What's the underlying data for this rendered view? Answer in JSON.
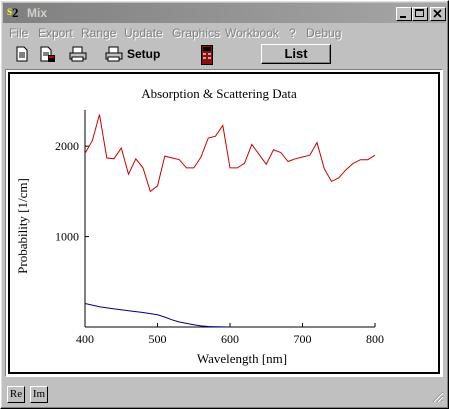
{
  "window": {
    "title": "Mix",
    "icon_text": "2",
    "controls": [
      "minimize",
      "maximize",
      "close"
    ]
  },
  "menu": {
    "items": [
      "File",
      "Export",
      "Range",
      "Update",
      "Graphics",
      "Workbook",
      "?",
      "Debug"
    ]
  },
  "toolbar": {
    "icons": [
      "new-document-icon",
      "save-document-icon",
      "print-icon",
      "printer-setup-icon",
      "calculator-icon"
    ],
    "setup_label": "Setup",
    "list_label": "List"
  },
  "status": {
    "re_label": "Re",
    "im_label": "Im"
  },
  "colors": {
    "absorption_line": "#cc0000",
    "scattering_line": "#000080",
    "window_face": "#c0c0c0",
    "titlebar_inactive": "#808080"
  },
  "chart_data": {
    "type": "line",
    "title": "Absorption & Scattering Data",
    "xlabel": "Wavelength [nm]",
    "ylabel": "Probability [1/cm]",
    "xlim": [
      400,
      800
    ],
    "ylim": [
      0,
      2400
    ],
    "xticks": [
      400,
      500,
      600,
      700,
      800
    ],
    "yticks": [
      1000,
      2000
    ],
    "grid": false,
    "series": [
      {
        "color": "#cc0000",
        "x": [
          400,
          410,
          420,
          430,
          440,
          450,
          460,
          470,
          480,
          490,
          500,
          510,
          520,
          530,
          540,
          550,
          560,
          570,
          580,
          590,
          600,
          610,
          620,
          630,
          640,
          650,
          660,
          670,
          680,
          690,
          700,
          710,
          720,
          730,
          740,
          750,
          760,
          770,
          780,
          790,
          800
        ],
        "values": [
          1920,
          2060,
          2350,
          1870,
          1860,
          1980,
          1690,
          1860,
          1760,
          1500,
          1560,
          1890,
          1870,
          1850,
          1760,
          1760,
          1880,
          2090,
          2110,
          2230,
          1760,
          1760,
          1810,
          2020,
          1910,
          1800,
          1960,
          1930,
          1830,
          1860,
          1880,
          1900,
          2040,
          1750,
          1610,
          1650,
          1740,
          1810,
          1850,
          1850,
          1900
        ]
      },
      {
        "color": "#000080",
        "x": [
          400,
          420,
          440,
          460,
          480,
          500,
          510,
          520,
          530,
          540,
          550,
          560,
          570,
          580,
          590,
          600
        ],
        "values": [
          260,
          225,
          200,
          180,
          160,
          135,
          110,
          80,
          55,
          40,
          25,
          12,
          6,
          3,
          1,
          0
        ]
      }
    ]
  }
}
